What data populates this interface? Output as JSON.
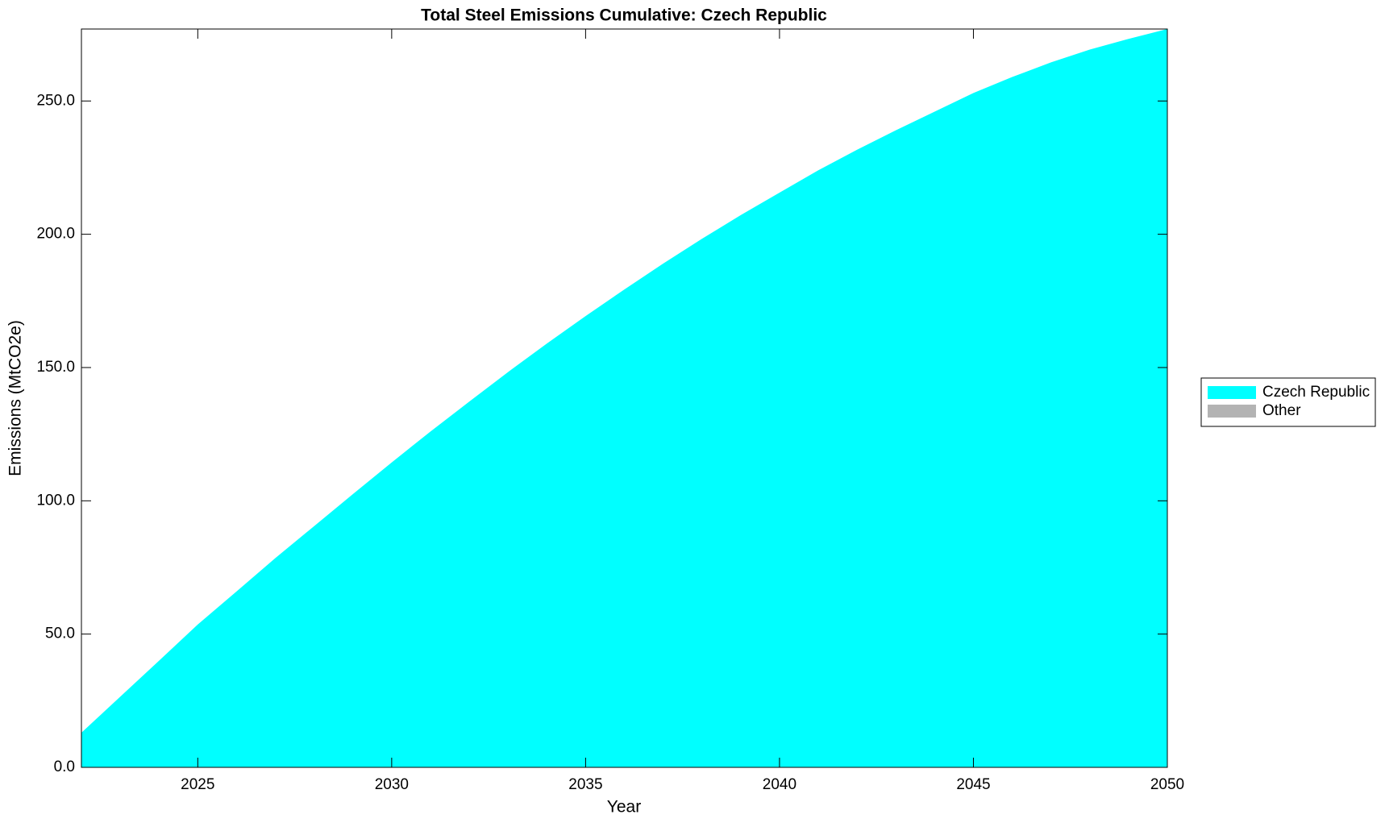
{
  "chart_data": {
    "type": "area",
    "title": "Total Steel Emissions Cumulative: Czech Republic",
    "xlabel": "Year",
    "ylabel": "Emissions (MtCO2e)",
    "x": [
      2022,
      2023,
      2024,
      2025,
      2026,
      2027,
      2028,
      2029,
      2030,
      2031,
      2032,
      2033,
      2034,
      2035,
      2036,
      2037,
      2038,
      2039,
      2040,
      2041,
      2042,
      2043,
      2044,
      2045,
      2046,
      2047,
      2048,
      2049,
      2050
    ],
    "series": [
      {
        "name": "Czech Republic",
        "color": "#00ffff",
        "values": [
          13,
          26.5,
          40,
          53.6,
          66,
          78.5,
          90.5,
          102.5,
          114.4,
          126,
          137.2,
          148.3,
          159,
          169.3,
          179.3,
          189,
          198.3,
          207.2,
          215.6,
          224,
          231.7,
          239,
          246,
          253,
          259,
          264.5,
          269.3,
          273.3,
          277
        ]
      },
      {
        "name": "Other",
        "color": "#b3b3b3",
        "values": [
          0,
          0,
          0,
          0,
          0,
          0,
          0,
          0,
          0,
          0,
          0,
          0,
          0,
          0,
          0,
          0,
          0,
          0,
          0,
          0,
          0,
          0,
          0,
          0,
          0,
          0,
          0,
          0,
          0
        ]
      }
    ],
    "stacked": true,
    "xlim": [
      2022,
      2050
    ],
    "xticks": [
      2025,
      2030,
      2035,
      2040,
      2045,
      2050
    ],
    "ylim": [
      0,
      277
    ],
    "yticks": [
      {
        "value": 0,
        "label": "0.0"
      },
      {
        "value": 50,
        "label": "50.0"
      },
      {
        "value": 100,
        "label": "100.0"
      },
      {
        "value": 150,
        "label": "150.0"
      },
      {
        "value": 200,
        "label": "200.0"
      },
      {
        "value": 250,
        "label": "250.0"
      }
    ],
    "grid": false,
    "legend": "outside right"
  }
}
